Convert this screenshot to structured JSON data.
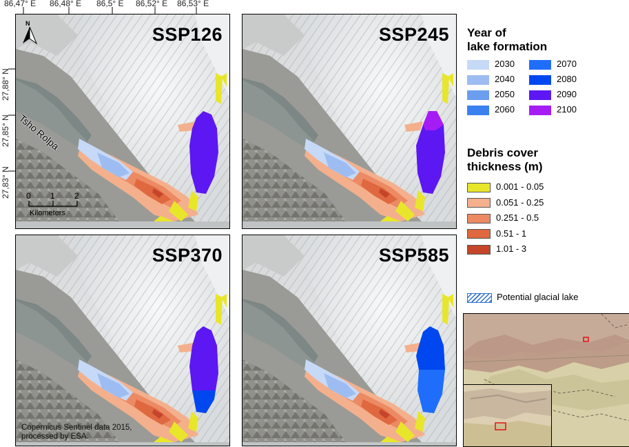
{
  "axes": {
    "x_ticks": [
      "86,47° E",
      "86,48° E",
      "86,5° E",
      "86,52° E",
      "86,53° E"
    ],
    "y_ticks": [
      "27,88° N",
      "27,85° N",
      "27,83° N"
    ]
  },
  "panels": [
    {
      "id": "ssp126",
      "title": "SSP126"
    },
    {
      "id": "ssp245",
      "title": "SSP245"
    },
    {
      "id": "ssp370",
      "title": "SSP370"
    },
    {
      "id": "ssp585",
      "title": "SSP585"
    }
  ],
  "map_labels": {
    "lake_name": "Tsho Rolpa",
    "north": "N",
    "scale_ticks": [
      "0",
      "1",
      "2"
    ],
    "scale_unit": "Kilometers",
    "credit_line1": "Copernicus Sentinel data 2015,",
    "credit_line2": "processed by ESA."
  },
  "legend_year": {
    "title_line1": "Year of",
    "title_line2": "lake formation",
    "items": [
      {
        "label": "2030",
        "color": "#c6d9f7"
      },
      {
        "label": "2040",
        "color": "#9dbdf2"
      },
      {
        "label": "2050",
        "color": "#6c9ef0"
      },
      {
        "label": "2060",
        "color": "#3b80ef"
      },
      {
        "label": "2070",
        "color": "#1f6dfb"
      },
      {
        "label": "2080",
        "color": "#0047f0"
      },
      {
        "label": "2090",
        "color": "#5d17f2"
      },
      {
        "label": "2100",
        "color": "#a51cf5"
      }
    ]
  },
  "legend_debris": {
    "title_line1": "Debris cover",
    "title_line2": "thickness (m)",
    "items": [
      {
        "label": "0.001 - 0.05",
        "color": "#e8e62a"
      },
      {
        "label": "0.051 - 0.25",
        "color": "#f4b08c"
      },
      {
        "label": "0.251 - 0.5",
        "color": "#ec8a63"
      },
      {
        "label": "0.51 - 1",
        "color": "#df6840"
      },
      {
        "label": "1.01 - 3",
        "color": "#c5452a"
      }
    ]
  },
  "legend_potential": {
    "label": "Potential glacial lake"
  }
}
